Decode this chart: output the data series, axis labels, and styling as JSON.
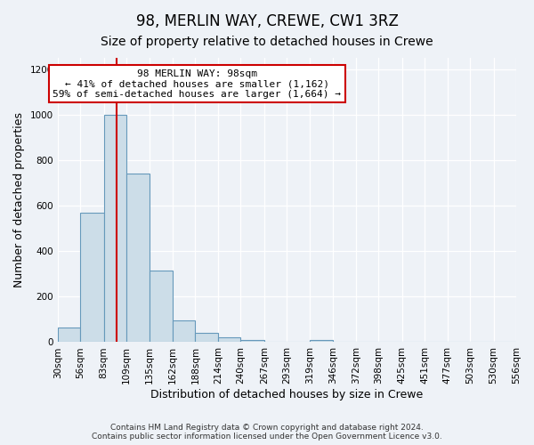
{
  "title": "98, MERLIN WAY, CREWE, CW1 3RZ",
  "subtitle": "Size of property relative to detached houses in Crewe",
  "xlabel": "Distribution of detached houses by size in Crewe",
  "ylabel": "Number of detached properties",
  "bin_edges": [
    30,
    56,
    83,
    109,
    135,
    162,
    188,
    214,
    240,
    267,
    293,
    319,
    346,
    372,
    398,
    425,
    451,
    477,
    503,
    530,
    556
  ],
  "bar_heights": [
    65,
    570,
    1000,
    740,
    315,
    95,
    40,
    20,
    10,
    0,
    0,
    10,
    0,
    0,
    0,
    0,
    0,
    0,
    0,
    0
  ],
  "bar_color": "#ccdde8",
  "bar_edge_color": "#6699bb",
  "property_size": 98,
  "property_line_color": "#cc0000",
  "annotation_line1": "98 MERLIN WAY: 98sqm",
  "annotation_line2": "← 41% of detached houses are smaller (1,162)",
  "annotation_line3": "59% of semi-detached houses are larger (1,664) →",
  "annotation_box_color": "#ffffff",
  "annotation_box_edge": "#cc0000",
  "ylim": [
    0,
    1250
  ],
  "yticks": [
    0,
    200,
    400,
    600,
    800,
    1000,
    1200
  ],
  "background_color": "#eef2f7",
  "footer_text": "Contains HM Land Registry data © Crown copyright and database right 2024.\nContains public sector information licensed under the Open Government Licence v3.0.",
  "title_fontsize": 12,
  "subtitle_fontsize": 10,
  "axis_label_fontsize": 9,
  "tick_fontsize": 7.5
}
